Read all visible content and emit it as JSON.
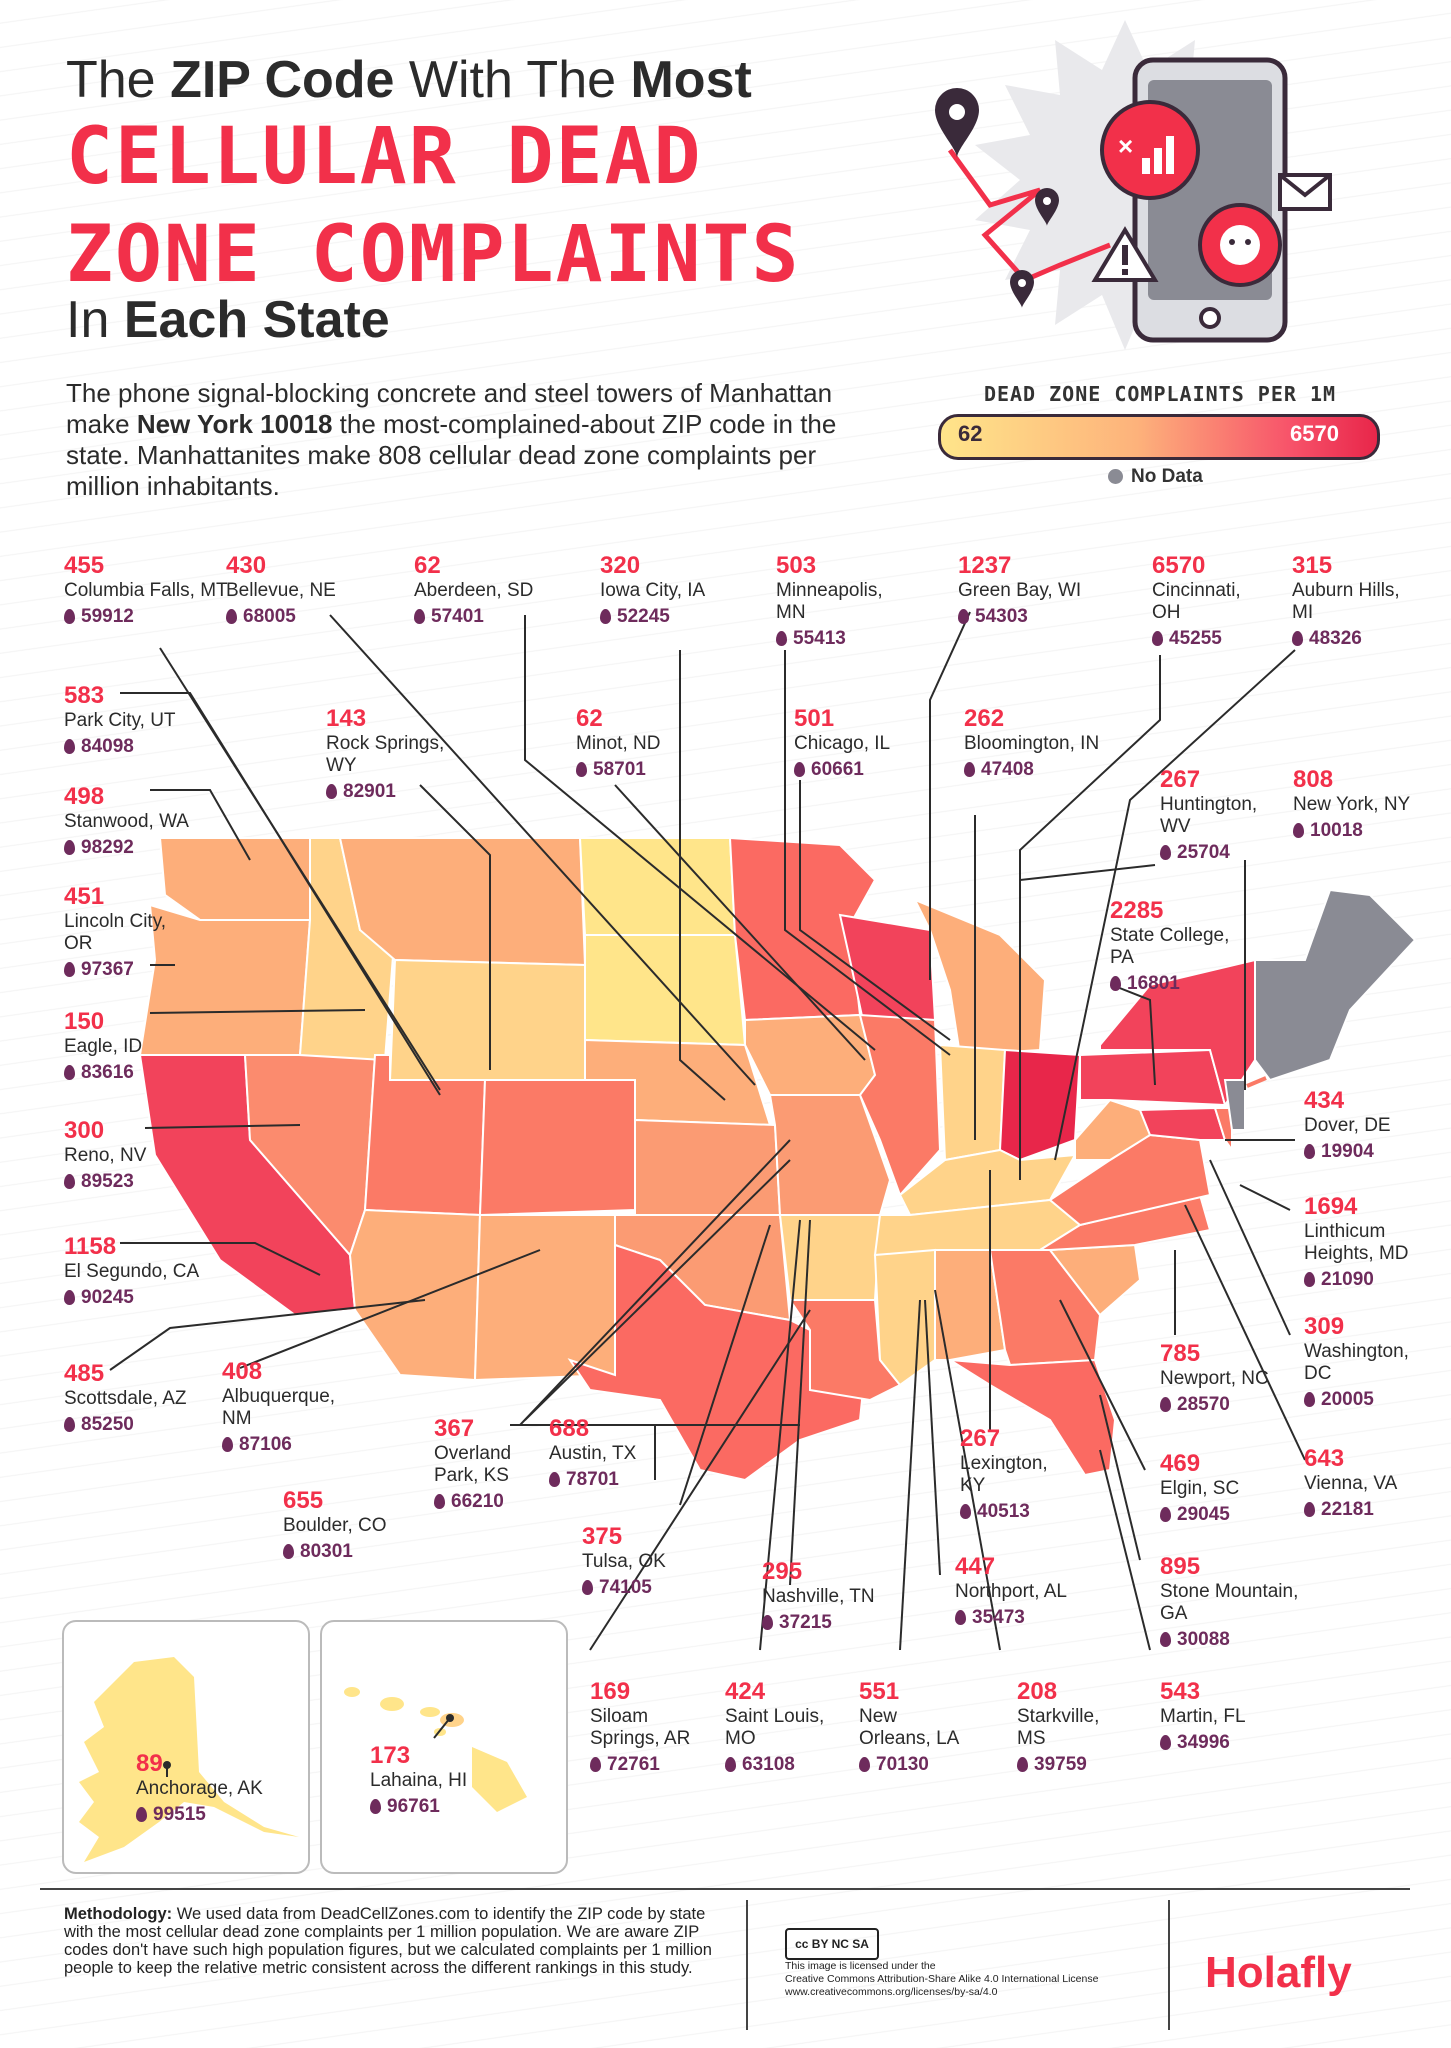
{
  "header": {
    "title_pre": "The ",
    "title_b1": "ZIP Code",
    "title_mid": " With The ",
    "title_b2": "Most",
    "pixel_line1": "CELLULAR DEAD",
    "pixel_line2": "ZONE COMPLAINTS",
    "title_end_pre": "In ",
    "title_end_b": "Each State"
  },
  "intro": {
    "p1": "The phone signal-blocking concrete and steel towers of Manhattan make ",
    "bold": "New York 10018",
    "p2": " the most-complained-about ZIP code in the state. Manhattanites make 808 cellular dead zone complaints per million inhabitants."
  },
  "legend": {
    "title": "DEAD ZONE COMPLAINTS PER 1M",
    "min": "62",
    "max": "6570",
    "no_data": "No Data",
    "colors": {
      "low": "#ffe58a",
      "mid": "#fdb27b",
      "high": "#e8264a",
      "nodata": "#8a8b94"
    }
  },
  "entries": [
    {
      "id": "mt",
      "value": "455",
      "city": "Columbia Falls, MT",
      "zip": "59912"
    },
    {
      "id": "ne",
      "value": "430",
      "city": "Bellevue, NE",
      "zip": "68005"
    },
    {
      "id": "sd",
      "value": "62",
      "city": "Aberdeen, SD",
      "zip": "57401"
    },
    {
      "id": "ia",
      "value": "320",
      "city": "Iowa City, IA",
      "zip": "52245"
    },
    {
      "id": "mn",
      "value": "503",
      "city": "Minneapolis, MN",
      "zip": "55413"
    },
    {
      "id": "wi",
      "value": "1237",
      "city": "Green Bay, WI",
      "zip": "54303"
    },
    {
      "id": "oh",
      "value": "6570",
      "city": "Cincinnati, OH",
      "zip": "45255"
    },
    {
      "id": "mi",
      "value": "315",
      "city": "Auburn Hills, MI",
      "zip": "48326"
    },
    {
      "id": "ut",
      "value": "583",
      "city": "Park City, UT",
      "zip": "84098"
    },
    {
      "id": "wy",
      "value": "143",
      "city": "Rock Springs, WY",
      "zip": "82901"
    },
    {
      "id": "nd",
      "value": "62",
      "city": "Minot, ND",
      "zip": "58701"
    },
    {
      "id": "il",
      "value": "501",
      "city": "Chicago, IL",
      "zip": "60661"
    },
    {
      "id": "in",
      "value": "262",
      "city": "Bloomington, IN",
      "zip": "47408"
    },
    {
      "id": "wa",
      "value": "498",
      "city": "Stanwood, WA",
      "zip": "98292"
    },
    {
      "id": "wv",
      "value": "267",
      "city": "Huntington, WV",
      "zip": "25704"
    },
    {
      "id": "ny",
      "value": "808",
      "city": "New York, NY",
      "zip": "10018"
    },
    {
      "id": "or",
      "value": "451",
      "city": "Lincoln City, OR",
      "zip": "97367"
    },
    {
      "id": "pa",
      "value": "2285",
      "city": "State College, PA",
      "zip": "16801"
    },
    {
      "id": "id",
      "value": "150",
      "city": "Eagle, ID",
      "zip": "83616"
    },
    {
      "id": "nv",
      "value": "300",
      "city": "Reno, NV",
      "zip": "89523"
    },
    {
      "id": "de",
      "value": "434",
      "city": "Dover, DE",
      "zip": "19904"
    },
    {
      "id": "ca",
      "value": "1158",
      "city": "El Segundo, CA",
      "zip": "90245"
    },
    {
      "id": "md",
      "value": "1694",
      "city": "Linthicum Heights, MD",
      "zip": "21090"
    },
    {
      "id": "dc",
      "value": "309",
      "city": "Washington, DC",
      "zip": "20005"
    },
    {
      "id": "az",
      "value": "485",
      "city": "Scottsdale, AZ",
      "zip": "85250"
    },
    {
      "id": "nm",
      "value": "408",
      "city": "Albuquerque, NM",
      "zip": "87106"
    },
    {
      "id": "ks",
      "value": "367",
      "city": "Overland Park, KS",
      "zip": "66210"
    },
    {
      "id": "tx",
      "value": "688",
      "city": "Austin, TX",
      "zip": "78701"
    },
    {
      "id": "nc",
      "value": "785",
      "city": "Newport, NC",
      "zip": "28570"
    },
    {
      "id": "co",
      "value": "655",
      "city": "Boulder, CO",
      "zip": "80301"
    },
    {
      "id": "ky",
      "value": "267",
      "city": "Lexington, KY",
      "zip": "40513"
    },
    {
      "id": "sc",
      "value": "469",
      "city": "Elgin, SC",
      "zip": "29045"
    },
    {
      "id": "va",
      "value": "643",
      "city": "Vienna, VA",
      "zip": "22181"
    },
    {
      "id": "ok",
      "value": "375",
      "city": "Tulsa, OK",
      "zip": "74105"
    },
    {
      "id": "tn",
      "value": "295",
      "city": "Nashville, TN",
      "zip": "37215"
    },
    {
      "id": "al",
      "value": "447",
      "city": "Northport, AL",
      "zip": "35473"
    },
    {
      "id": "ga",
      "value": "895",
      "city": "Stone Mountain, GA",
      "zip": "30088"
    },
    {
      "id": "ar",
      "value": "169",
      "city": "Siloam Springs, AR",
      "zip": "72761"
    },
    {
      "id": "mo",
      "value": "424",
      "city": "Saint Louis, MO",
      "zip": "63108"
    },
    {
      "id": "la",
      "value": "551",
      "city": "New Orleans, LA",
      "zip": "70130"
    },
    {
      "id": "ms",
      "value": "208",
      "city": "Starkville, MS",
      "zip": "39759"
    },
    {
      "id": "fl",
      "value": "543",
      "city": "Martin, FL",
      "zip": "34996"
    },
    {
      "id": "ak",
      "value": "89",
      "city": "Anchorage, AK",
      "zip": "99515"
    },
    {
      "id": "hi",
      "value": "173",
      "city": "Lahaina, HI",
      "zip": "96761"
    }
  ],
  "footer": {
    "method_label": "Methodology:",
    "method_text": " We used data from DeadCellZones.com to identify the ZIP code by state with the most cellular dead zone complaints per 1 million population. We are aware ZIP codes don't have such high population figures, but we calculated complaints per 1 million people to keep the relative metric consistent across the different rankings in this study.",
    "cc_badge": "cc BY NC SA",
    "license_l1": "This image is licensed under the",
    "license_l2": "Creative Commons Attribution-Share Alike 4.0 International License",
    "license_l3": "www.creativecommons.org/licenses/by-sa/4.0",
    "brand": "Holafly"
  }
}
